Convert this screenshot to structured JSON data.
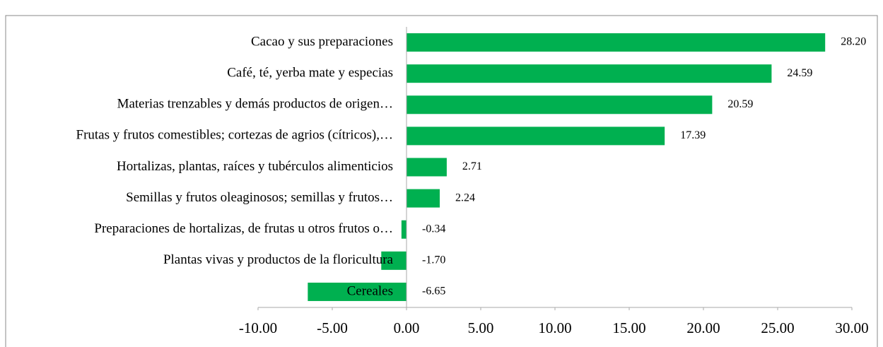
{
  "chart_data": {
    "type": "bar",
    "orientation": "horizontal",
    "categories": [
      "Cacao y sus preparaciones",
      "Café, té, yerba mate y especias",
      "Materias trenzables y demás productos de origen…",
      "Frutas y frutos comestibles; cortezas de agrios (cítricos),…",
      "Hortalizas, plantas, raíces y tubérculos alimenticios",
      "Semillas y frutos oleaginosos; semillas y frutos…",
      "Preparaciones de hortalizas, de frutas u otros frutos o…",
      "Plantas vivas y productos de la floricultura",
      "Cereales"
    ],
    "values": [
      28.2,
      24.59,
      20.59,
      17.39,
      2.71,
      2.24,
      -0.34,
      -1.7,
      -6.65
    ],
    "value_labels": [
      "28.20",
      "24.59",
      "20.59",
      "17.39",
      "2.71",
      "2.24",
      "-0.34",
      "-1.70",
      "-6.65"
    ],
    "color": "#00b050",
    "xlim": [
      -10,
      30
    ],
    "xticks": [
      {
        "value": -10,
        "label": "-10.00"
      },
      {
        "value": -5,
        "label": "-5.00"
      },
      {
        "value": 0,
        "label": "0.00"
      },
      {
        "value": 5,
        "label": "5.00"
      },
      {
        "value": 10,
        "label": "10.00"
      },
      {
        "value": 15,
        "label": "15.00"
      },
      {
        "value": 20,
        "label": "20.00"
      },
      {
        "value": 25,
        "label": "25.00"
      },
      {
        "value": 30,
        "label": "30.00"
      }
    ],
    "grid": false
  }
}
